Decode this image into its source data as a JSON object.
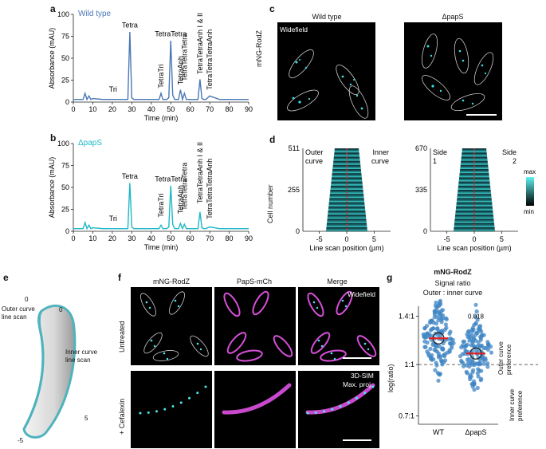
{
  "panels": {
    "a": {
      "letter": "a",
      "strain": "Wild type",
      "ylabel": "Absorbance (mAU)",
      "xlabel": "Time (min)",
      "yticks": [
        "0",
        "25",
        "50",
        "75",
        "100"
      ],
      "xticks": [
        "0",
        "10",
        "20",
        "30",
        "40",
        "50",
        "60",
        "70",
        "80",
        "90"
      ],
      "color": "#4a78b5",
      "peaks": [
        "Tri",
        "Tetra",
        "TetraTri",
        "TetraTetra",
        "TetraAnh",
        "TetraTetraTetra",
        "TetraTetraAnh I & II",
        "TetraTetraTetraAnh"
      ]
    },
    "b": {
      "letter": "b",
      "strain": "ΔpapS",
      "ylabel": "Absorbance (mAU)",
      "xlabel": "Time (min)",
      "yticks": [
        "0",
        "25",
        "50",
        "75",
        "100"
      ],
      "xticks": [
        "0",
        "10",
        "20",
        "30",
        "40",
        "50",
        "60",
        "70",
        "80",
        "90"
      ],
      "color": "#1fb8c6",
      "peaks": [
        "Tri",
        "Tetra",
        "TetraTri",
        "TetraTetra",
        "TetraAnh",
        "TetraTetraTetra",
        "TetraTetraAnh I & II",
        "TetraTetraTetraAnh"
      ]
    },
    "c": {
      "letter": "c",
      "col1": "Wild type",
      "col2": "ΔpapS",
      "row_label": "mNG-RodZ",
      "widefield": "Widefield"
    },
    "d": {
      "letter": "d",
      "ylabel": "Cell number",
      "xlabel": "Line scan position (µm)",
      "left": {
        "yticks": [
          "511",
          "255",
          "0"
        ],
        "label_left": "Outer curve",
        "label_right": "Inner curve"
      },
      "right": {
        "yticks": [
          "670",
          "335",
          "0"
        ],
        "label_left": "Side 1",
        "label_right": "Side 2"
      },
      "xticks": [
        "-5",
        "0",
        "5"
      ],
      "colorbar_max": "max",
      "colorbar_min": "min"
    },
    "e": {
      "letter": "e",
      "outer_label": "Outer curve line scan",
      "inner_label": "Inner curve line scan",
      "marks": [
        "0",
        "0",
        "5",
        "-5"
      ]
    },
    "f": {
      "letter": "f",
      "cols": [
        "mNG-RodZ",
        "PapS-mCh",
        "Merge"
      ],
      "rows": [
        "Untreated",
        "+ Cefalexin"
      ],
      "widefield": "Widefield",
      "sim1": "3D-SIM",
      "sim2": "Max. proj."
    },
    "g": {
      "letter": "g",
      "title": "mNG-RodZ",
      "subtitle1": "Signal ratio",
      "subtitle2": "Outer : inner curve",
      "ylabel": "log(ratio)",
      "yticks": [
        "1.4:1",
        "1:1",
        "0.7:1"
      ],
      "xticks": [
        "WT",
        "ΔpapS"
      ],
      "pvalue": "0.018",
      "outer_pref": "Outer curve preference",
      "inner_pref": "Inner curve preference"
    }
  },
  "chart_data": [
    {
      "type": "line",
      "panel": "a",
      "xlabel": "Time (min)",
      "ylabel": "Absorbance (mAU)",
      "xlim": [
        0,
        90
      ],
      "ylim": [
        0,
        100
      ],
      "series": [
        {
          "name": "Wild type",
          "x": [
            0,
            5,
            6,
            7,
            8,
            9,
            10,
            15,
            20,
            25,
            28,
            29,
            30,
            31,
            35,
            40,
            44,
            45,
            46,
            48,
            49,
            50,
            51,
            52,
            54,
            55,
            56,
            57,
            58,
            60,
            62,
            64,
            65,
            66,
            67,
            68,
            70,
            75,
            80,
            90
          ],
          "y": [
            3,
            3,
            10,
            3,
            7,
            3,
            4,
            3,
            3,
            3,
            3,
            80,
            5,
            3,
            3,
            3,
            3,
            10,
            3,
            3,
            5,
            70,
            8,
            3,
            3,
            14,
            3,
            10,
            3,
            3,
            3,
            3,
            26,
            4,
            3,
            3,
            7,
            3,
            3,
            3
          ]
        }
      ]
    },
    {
      "type": "line",
      "panel": "b",
      "xlabel": "Time (min)",
      "ylabel": "Absorbance (mAU)",
      "xlim": [
        0,
        90
      ],
      "ylim": [
        0,
        100
      ],
      "series": [
        {
          "name": "ΔpapS",
          "x": [
            0,
            5,
            6,
            7,
            8,
            9,
            10,
            15,
            20,
            25,
            28,
            29,
            30,
            31,
            35,
            40,
            44,
            45,
            46,
            48,
            49,
            50,
            51,
            52,
            54,
            55,
            56,
            57,
            58,
            60,
            62,
            64,
            65,
            66,
            67,
            68,
            70,
            75,
            80,
            90
          ],
          "y": [
            3,
            3,
            10,
            3,
            7,
            3,
            4,
            3,
            3,
            3,
            3,
            55,
            5,
            3,
            3,
            3,
            3,
            7,
            3,
            3,
            5,
            52,
            8,
            3,
            3,
            9,
            3,
            8,
            3,
            3,
            3,
            3,
            22,
            4,
            3,
            3,
            5,
            3,
            3,
            3
          ]
        }
      ]
    },
    {
      "type": "scatter",
      "panel": "g",
      "categories": [
        "WT",
        "ΔpapS"
      ],
      "ylabel": "log(ratio)",
      "median_ratio": [
        1.2,
        1.08
      ]
    }
  ]
}
